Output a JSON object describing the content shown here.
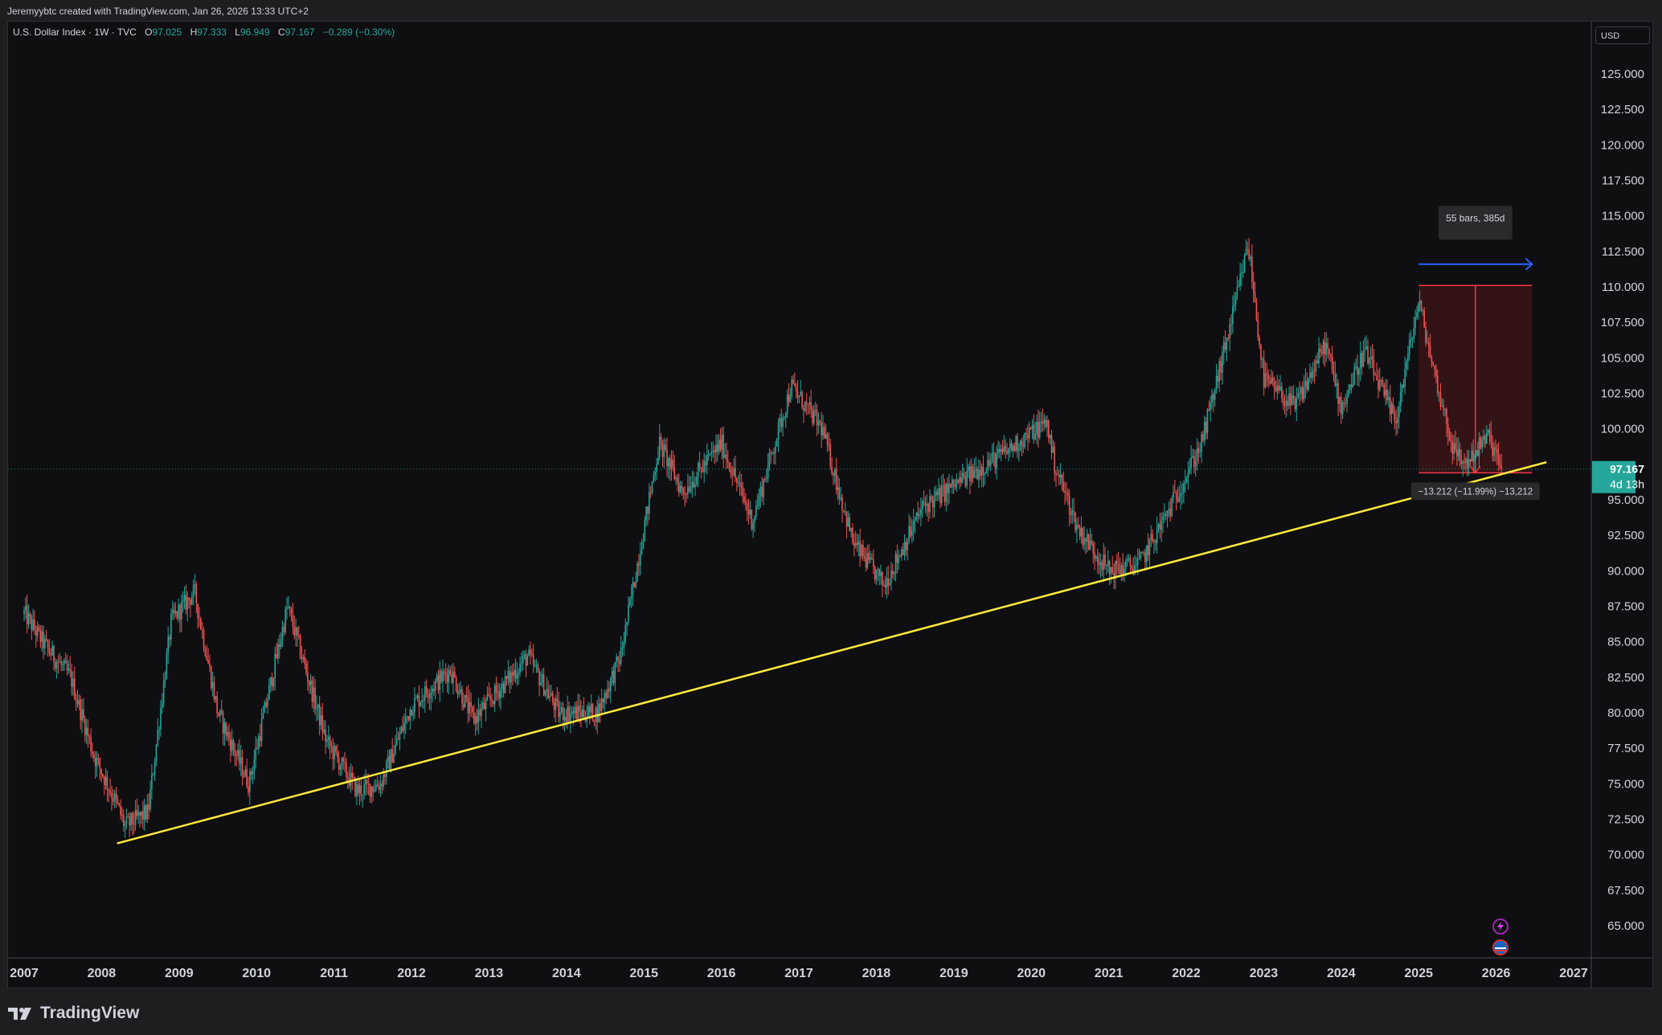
{
  "header": {
    "attribution": "Jeremyybtc created with TradingView.com, Jan 26, 2026 13:33 UTC+2"
  },
  "legend": {
    "symbol": "U.S. Dollar Index · 1W · TVC",
    "open_label": "O",
    "open": "97.025",
    "high_label": "H",
    "high": "97.333",
    "low_label": "L",
    "low": "96.949",
    "close_label": "C",
    "close": "97.167",
    "change": "−0.289 (−0.30%)"
  },
  "price_scale": {
    "currency": "USD",
    "current_price": "97.167",
    "countdown": "4d 13h"
  },
  "measure": {
    "bars_label": "55 bars, 385d",
    "change_label": "−13.212 (−11.99%) −13,212"
  },
  "footer": {
    "brand": "TradingView"
  },
  "colors": {
    "background": "#0f0f12",
    "up": "#26a69a",
    "down": "#ef5350",
    "trendline": "#ffeb3b",
    "measure_fill": "#3a1418",
    "measure_line": "#f23645",
    "arrow": "#2962ff",
    "price_label": "#26a69a"
  },
  "icons": [
    "lightning-icon",
    "us-flag-icon",
    "tradingview-logo-icon"
  ],
  "chart_data": {
    "type": "candlestick",
    "title": "U.S. Dollar Index",
    "interval": "1W",
    "ylim": [
      62.5,
      127.5
    ],
    "xlim": [
      2007.0,
      2027.2
    ],
    "y_ticks": [
      "125.000",
      "122.500",
      "120.000",
      "117.500",
      "115.000",
      "112.500",
      "110.000",
      "107.500",
      "105.000",
      "102.500",
      "100.000",
      "95.000",
      "92.500",
      "90.000",
      "87.500",
      "85.000",
      "82.500",
      "80.000",
      "77.500",
      "75.000",
      "72.500",
      "70.000",
      "67.500",
      "65.000"
    ],
    "x_ticks": [
      "2007",
      "2008",
      "2009",
      "2010",
      "2011",
      "2012",
      "2013",
      "2014",
      "2015",
      "2016",
      "2017",
      "2018",
      "2019",
      "2020",
      "2021",
      "2022",
      "2023",
      "2024",
      "2025",
      "2026",
      "2027"
    ],
    "series_anchors": [
      [
        2007.0,
        87.0
      ],
      [
        2007.3,
        84.5
      ],
      [
        2007.6,
        82.5
      ],
      [
        2007.9,
        77.0
      ],
      [
        2008.2,
        73.5
      ],
      [
        2008.3,
        72.0
      ],
      [
        2008.6,
        73.0
      ],
      [
        2008.9,
        86.5
      ],
      [
        2009.2,
        88.5
      ],
      [
        2009.5,
        80.0
      ],
      [
        2009.9,
        75.0
      ],
      [
        2010.4,
        87.5
      ],
      [
        2010.9,
        78.0
      ],
      [
        2011.3,
        74.5
      ],
      [
        2011.6,
        75.0
      ],
      [
        2012.0,
        80.5
      ],
      [
        2012.5,
        83.0
      ],
      [
        2012.8,
        79.5
      ],
      [
        2013.5,
        84.0
      ],
      [
        2013.9,
        80.0
      ],
      [
        2014.4,
        80.0
      ],
      [
        2014.7,
        84.0
      ],
      [
        2015.2,
        99.0
      ],
      [
        2015.5,
        95.5
      ],
      [
        2016.0,
        99.0
      ],
      [
        2016.4,
        93.5
      ],
      [
        2016.9,
        103.0
      ],
      [
        2017.3,
        100.0
      ],
      [
        2017.7,
        92.0
      ],
      [
        2018.1,
        89.0
      ],
      [
        2018.6,
        94.5
      ],
      [
        2019.0,
        96.0
      ],
      [
        2019.7,
        98.5
      ],
      [
        2020.2,
        100.5
      ],
      [
        2020.3,
        97.5
      ],
      [
        2020.6,
        93.0
      ],
      [
        2021.0,
        90.0
      ],
      [
        2021.4,
        90.5
      ],
      [
        2021.8,
        94.5
      ],
      [
        2022.2,
        99.0
      ],
      [
        2022.6,
        108.0
      ],
      [
        2022.8,
        113.0
      ],
      [
        2023.0,
        103.5
      ],
      [
        2023.4,
        101.5
      ],
      [
        2023.8,
        106.0
      ],
      [
        2024.0,
        101.5
      ],
      [
        2024.3,
        105.5
      ],
      [
        2024.7,
        100.5
      ],
      [
        2025.0,
        109.0
      ],
      [
        2025.2,
        104.0
      ],
      [
        2025.45,
        98.5
      ],
      [
        2025.6,
        97.5
      ],
      [
        2025.9,
        99.5
      ],
      [
        2026.07,
        97.2
      ]
    ],
    "trendline": {
      "from": [
        2008.2,
        70.8
      ],
      "to": [
        2026.65,
        97.65
      ]
    },
    "measurement": {
      "x_from": 2025.0,
      "x_to": 2026.07,
      "y_from": 110.1,
      "y_to": 96.9,
      "change": -13.212,
      "percent": -11.99,
      "bars": 55,
      "days": 385
    },
    "horizontal_line": 97.167
  }
}
